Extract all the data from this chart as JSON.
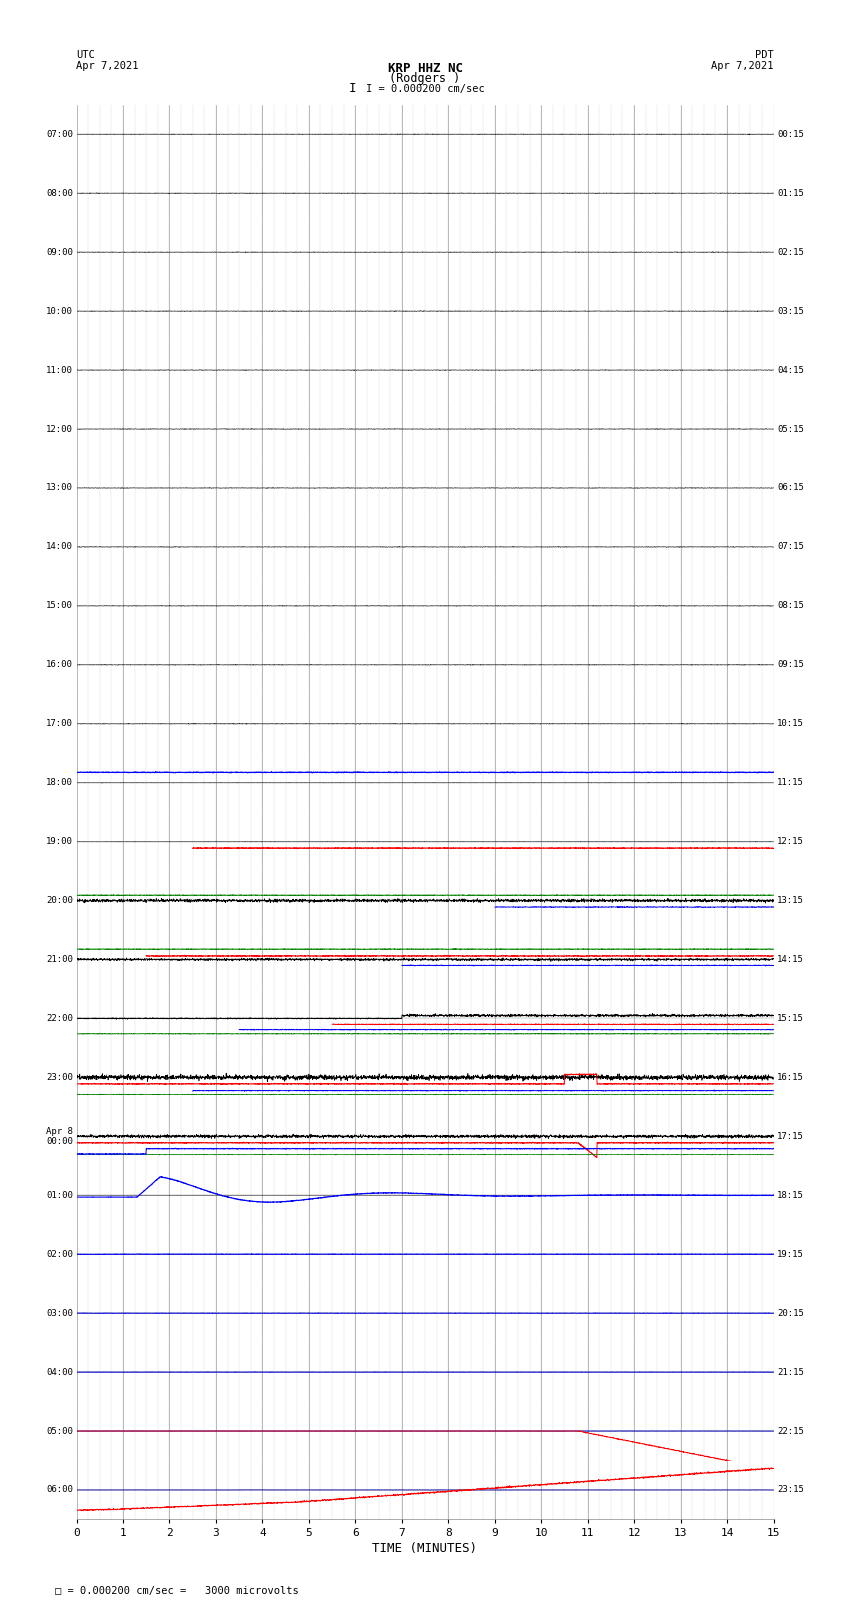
{
  "title_line1": "KRP HHZ NC",
  "title_line2": "(Rodgers )",
  "scale_text": "I = 0.000200 cm/sec",
  "left_label": "UTC",
  "left_date": "Apr 7,2021",
  "right_label": "PDT",
  "right_date": "Apr 7,2021",
  "bottom_label": "TIME (MINUTES)",
  "footer_text": "= 0.000200 cm/sec =   3000 microvolts",
  "xlim_min": 0,
  "xlim_max": 15,
  "n_rows": 24,
  "utc_labels": [
    "07:00",
    "08:00",
    "09:00",
    "10:00",
    "11:00",
    "12:00",
    "13:00",
    "14:00",
    "15:00",
    "16:00",
    "17:00",
    "18:00",
    "19:00",
    "20:00",
    "21:00",
    "22:00",
    "23:00",
    "Apr 8\n00:00",
    "01:00",
    "02:00",
    "03:00",
    "04:00",
    "05:00",
    "06:00"
  ],
  "pdt_labels": [
    "00:15",
    "01:15",
    "02:15",
    "03:15",
    "04:15",
    "05:15",
    "06:15",
    "07:15",
    "08:15",
    "09:15",
    "10:15",
    "11:15",
    "12:15",
    "13:15",
    "14:15",
    "15:15",
    "16:15",
    "17:15",
    "18:15",
    "19:15",
    "20:15",
    "21:15",
    "22:15",
    "23:15"
  ],
  "bg_color": "#ffffff",
  "grid_major_color": "#888888",
  "grid_minor_color": "#cccccc",
  "fig_width": 8.5,
  "fig_height": 16.13,
  "dpi": 100
}
